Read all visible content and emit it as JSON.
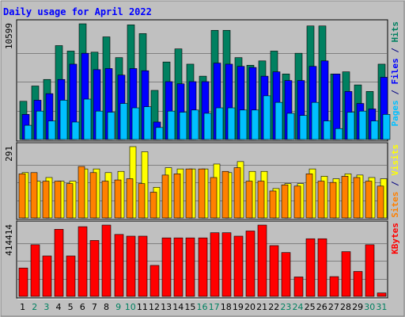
{
  "chart_data": {
    "type": "bar",
    "title": "Daily usage for April 2022",
    "categories": [
      "1",
      "2",
      "3",
      "4",
      "5",
      "6",
      "7",
      "8",
      "9",
      "10",
      "11",
      "12",
      "13",
      "14",
      "15",
      "16",
      "17",
      "18",
      "19",
      "20",
      "21",
      "22",
      "23",
      "24",
      "25",
      "26",
      "27",
      "28",
      "29",
      "30",
      "31"
    ],
    "weekend_days": [
      "2",
      "3",
      "9",
      "10",
      "16",
      "17",
      "23",
      "24",
      "30",
      "31"
    ],
    "panels": [
      {
        "id": "hits",
        "ymax_label": "10599",
        "ylim": [
          0,
          10599
        ],
        "right_labels": [
          {
            "text": "Pages",
            "color": "#00c0ff"
          },
          {
            "text": " / ",
            "color": "#000080"
          },
          {
            "text": "Files",
            "color": "#0000ff"
          },
          {
            "text": " / ",
            "color": "#000080"
          },
          {
            "text": "Hits",
            "color": "#008060"
          }
        ],
        "series": [
          {
            "name": "Hits",
            "color": "#008060",
            "values": [
              3500,
              4900,
              5500,
              8600,
              8100,
              10599,
              8000,
              9400,
              7500,
              10500,
              9700,
              4500,
              7100,
              8300,
              6900,
              5800,
              10000,
              10000,
              7500,
              6800,
              7200,
              8100,
              6000,
              7900,
              10400,
              10400,
              6000,
              6200,
              5000,
              4400,
              6900
            ]
          },
          {
            "name": "Files",
            "color": "#0000ff",
            "values": [
              2300,
              3600,
              4200,
              5500,
              6900,
              7900,
              6400,
              6500,
              5900,
              6500,
              6300,
              1600,
              5300,
              5100,
              5300,
              5300,
              7000,
              6900,
              6700,
              6600,
              5800,
              6200,
              5400,
              5400,
              6700,
              7200,
              6000,
              4400,
              3300,
              2800,
              5700
            ]
          },
          {
            "name": "Pages",
            "color": "#00c0ff",
            "values": [
              1300,
              2600,
              1700,
              3600,
              1600,
              3700,
              2600,
              2500,
              3300,
              2900,
              3000,
              1100,
              2600,
              2500,
              2700,
              2400,
              2900,
              2900,
              2700,
              2700,
              4000,
              3400,
              2400,
              2200,
              3400,
              1700,
              1000,
              2500,
              2600,
              1700,
              2300
            ]
          }
        ]
      },
      {
        "id": "visits",
        "ymax_label": "291",
        "ylim": [
          0,
          291
        ],
        "right_labels": [
          {
            "text": "Sites",
            "color": "#ff8000"
          },
          {
            "text": " / ",
            "color": "#000080"
          },
          {
            "text": "Visits",
            "color": "#ffff00"
          }
        ],
        "series": [
          {
            "name": "Visits",
            "color": "#ffff00",
            "values": [
              185,
              150,
              165,
              150,
              150,
              200,
              200,
              185,
              190,
              291,
              270,
              125,
              205,
              200,
              200,
              200,
              220,
              185,
              230,
              190,
              190,
              120,
              140,
              140,
              200,
              170,
              160,
              180,
              175,
              165,
              160
            ]
          },
          {
            "name": "Sites",
            "color": "#ff8000",
            "values": [
              180,
              185,
              150,
              150,
              140,
              210,
              185,
              150,
              155,
              160,
              140,
              105,
              175,
              180,
              200,
              200,
              165,
              190,
              205,
              150,
              150,
              110,
              135,
              130,
              180,
              150,
              145,
              170,
              165,
              150,
              130
            ]
          }
        ]
      },
      {
        "id": "kbytes",
        "ymax_label": "414414",
        "ylim": [
          0,
          414414
        ],
        "right_labels": [
          {
            "text": "KBytes",
            "color": "#ff0000"
          }
        ],
        "series": [
          {
            "name": "KBytes",
            "color": "#ff0000",
            "values": [
              165000,
              300000,
              235000,
              390000,
              235000,
              405000,
              325000,
              414414,
              360000,
              350000,
              350000,
              180000,
              340000,
              340000,
              340000,
              340000,
              370000,
              370000,
              350000,
              380000,
              414414,
              295000,
              255000,
              113000,
              335000,
              335000,
              115000,
              260000,
              145000,
              300000,
              20000
            ]
          }
        ]
      }
    ]
  }
}
